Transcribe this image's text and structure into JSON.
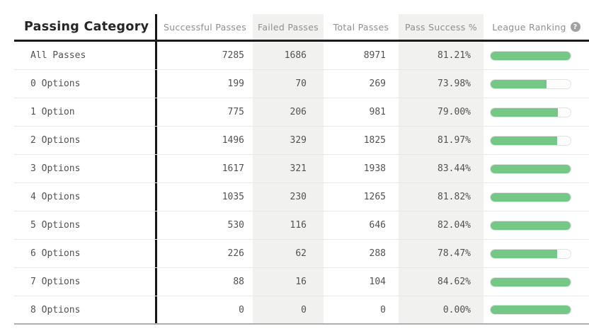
{
  "chart_data": {
    "type": "table",
    "title": "Passing Category",
    "columns": [
      "Successful Passes",
      "Failed Passes",
      "Total Passes",
      "Pass Success %",
      "League Ranking"
    ],
    "help_icon_glyph": "?",
    "rows": [
      {
        "category": "All Passes",
        "successful_passes": 7285,
        "failed_passes": 1686,
        "total_passes": 8971,
        "pass_success_pct": "81.21%",
        "league_ranking_bar_pct": 100
      },
      {
        "category": "0 Options",
        "successful_passes": 199,
        "failed_passes": 70,
        "total_passes": 269,
        "pass_success_pct": "73.98%",
        "league_ranking_bar_pct": 70
      },
      {
        "category": "1 Option",
        "successful_passes": 775,
        "failed_passes": 206,
        "total_passes": 981,
        "pass_success_pct": "79.00%",
        "league_ranking_bar_pct": 84
      },
      {
        "category": "2 Options",
        "successful_passes": 1496,
        "failed_passes": 329,
        "total_passes": 1825,
        "pass_success_pct": "81.97%",
        "league_ranking_bar_pct": 83
      },
      {
        "category": "3 Options",
        "successful_passes": 1617,
        "failed_passes": 321,
        "total_passes": 1938,
        "pass_success_pct": "83.44%",
        "league_ranking_bar_pct": 100
      },
      {
        "category": "4 Options",
        "successful_passes": 1035,
        "failed_passes": 230,
        "total_passes": 1265,
        "pass_success_pct": "81.82%",
        "league_ranking_bar_pct": 100
      },
      {
        "category": "5 Options",
        "successful_passes": 530,
        "failed_passes": 116,
        "total_passes": 646,
        "pass_success_pct": "82.04%",
        "league_ranking_bar_pct": 100
      },
      {
        "category": "6 Options",
        "successful_passes": 226,
        "failed_passes": 62,
        "total_passes": 288,
        "pass_success_pct": "78.47%",
        "league_ranking_bar_pct": 83
      },
      {
        "category": "7 Options",
        "successful_passes": 88,
        "failed_passes": 16,
        "total_passes": 104,
        "pass_success_pct": "84.62%",
        "league_ranking_bar_pct": 100
      },
      {
        "category": "8 Options",
        "successful_passes": 0,
        "failed_passes": 0,
        "total_passes": 0,
        "pass_success_pct": "0.00%",
        "league_ranking_bar_pct": 100
      }
    ],
    "colors": {
      "bar_fill_green": "#74c787",
      "column_band_gray": "#f1f1ef"
    }
  }
}
